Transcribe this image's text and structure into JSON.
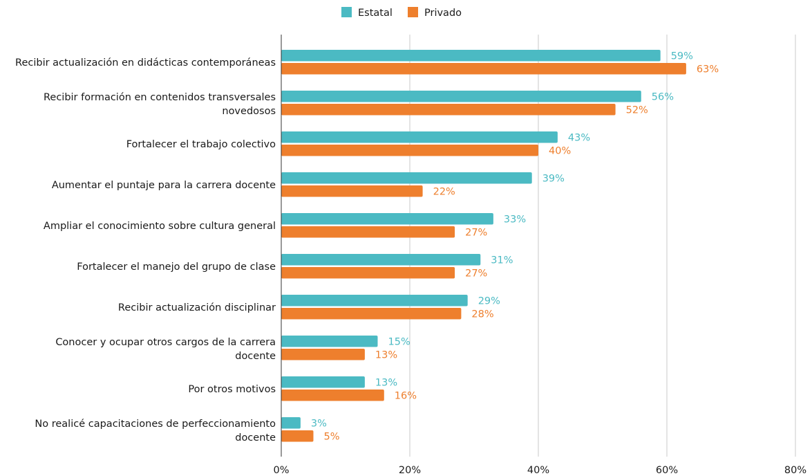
{
  "chart_data": {
    "type": "bar",
    "orientation": "horizontal",
    "categories": [
      [
        "Recibir actualización en didácticas contemporáneas"
      ],
      [
        "Recibir formación en contenidos transversales",
        "novedosos"
      ],
      [
        "Fortalecer el trabajo colectivo"
      ],
      [
        "Aumentar el puntaje para la carrera docente"
      ],
      [
        "Ampliar el conocimiento sobre cultura general"
      ],
      [
        "Fortalecer el manejo del grupo de clase"
      ],
      [
        "Recibir actualización disciplinar"
      ],
      [
        "Conocer y ocupar otros cargos de la carrera",
        "docente"
      ],
      [
        "Por otros motivos"
      ],
      [
        "No realicé capacitaciones de perfeccionamiento",
        "docente"
      ]
    ],
    "series": [
      {
        "name": "Estatal",
        "color": "#4bbac3",
        "values": [
          59,
          56,
          43,
          39,
          33,
          31,
          29,
          15,
          13,
          3
        ],
        "labels": [
          "59%",
          "56%",
          "43%",
          "39%",
          "33%",
          "31%",
          "29%",
          "15%",
          "13%",
          "3%"
        ]
      },
      {
        "name": "Privado",
        "color": "#ee7f2d",
        "values": [
          63,
          52,
          40,
          22,
          27,
          27,
          28,
          13,
          16,
          5
        ],
        "labels": [
          "63%",
          "52%",
          "40%",
          "22%",
          "27%",
          "27%",
          "28%",
          "13%",
          "16%",
          "5%"
        ]
      }
    ],
    "xlim": [
      0,
      80
    ],
    "ticks": [
      0,
      20,
      40,
      60,
      80
    ],
    "tick_labels": [
      "0%",
      "20%",
      "40%",
      "60%",
      "80%"
    ],
    "grid": true,
    "legend_position": "top-center"
  }
}
